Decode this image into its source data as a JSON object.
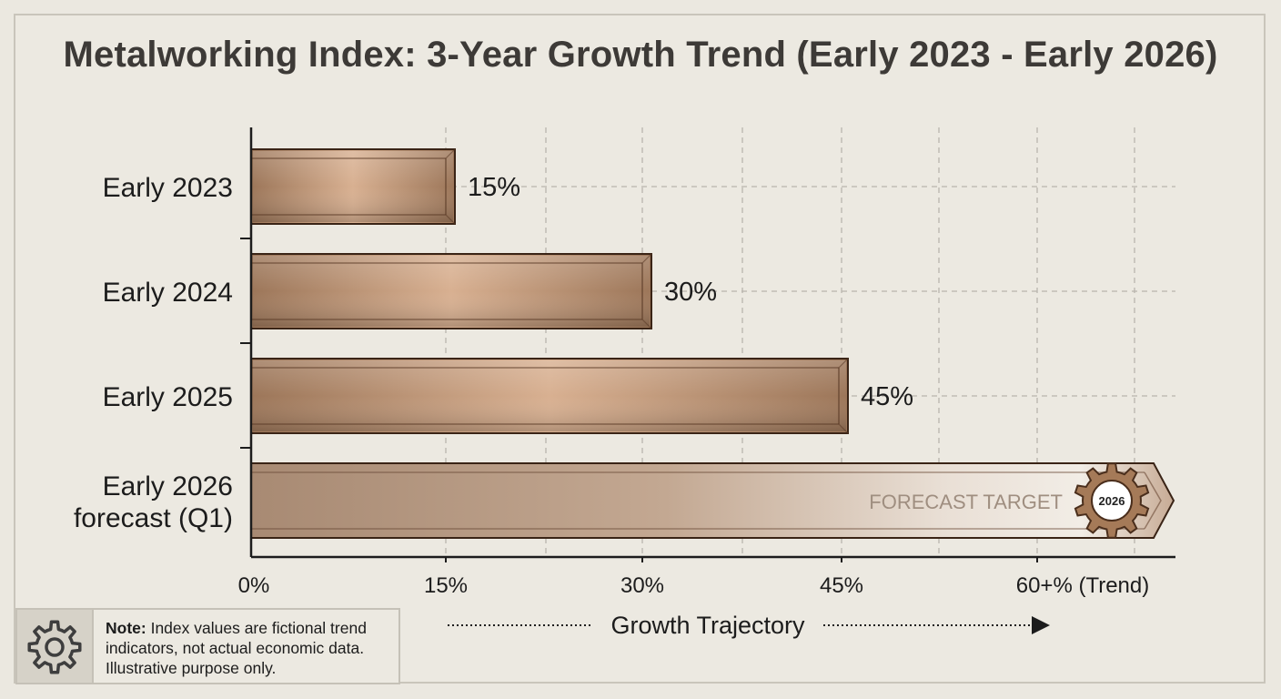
{
  "title": "Metalworking Index: 3-Year Growth Trend (Early 2023 - Early 2026)",
  "chart_data": {
    "type": "bar",
    "orientation": "horizontal",
    "categories": [
      "Early 2023",
      "Early 2024",
      "Early 2025",
      "Early 2026 forecast (Q1)"
    ],
    "values": [
      15,
      30,
      45,
      60
    ],
    "data_labels": [
      "15%",
      "30%",
      "45%",
      ""
    ],
    "x_ticks": [
      "0%",
      "15%",
      "30%",
      "45%",
      "60+% (Trend)"
    ],
    "xlim": [
      0,
      60
    ],
    "xlabel": "Growth Trajectory",
    "grid": true,
    "forecast_label": "FORECAST TARGET",
    "forecast_badge": "2026"
  },
  "note": {
    "bold": "Note:",
    "text": " Index values are fictional trend indicators, not actual economic data. Illustrative purpose only."
  },
  "colors": {
    "bar_base": "#a37f63",
    "bar_highlight": "#dcb594",
    "bar_edge": "#3a2416",
    "grid": "#b9b5ad",
    "text": "#1c1c1c"
  }
}
